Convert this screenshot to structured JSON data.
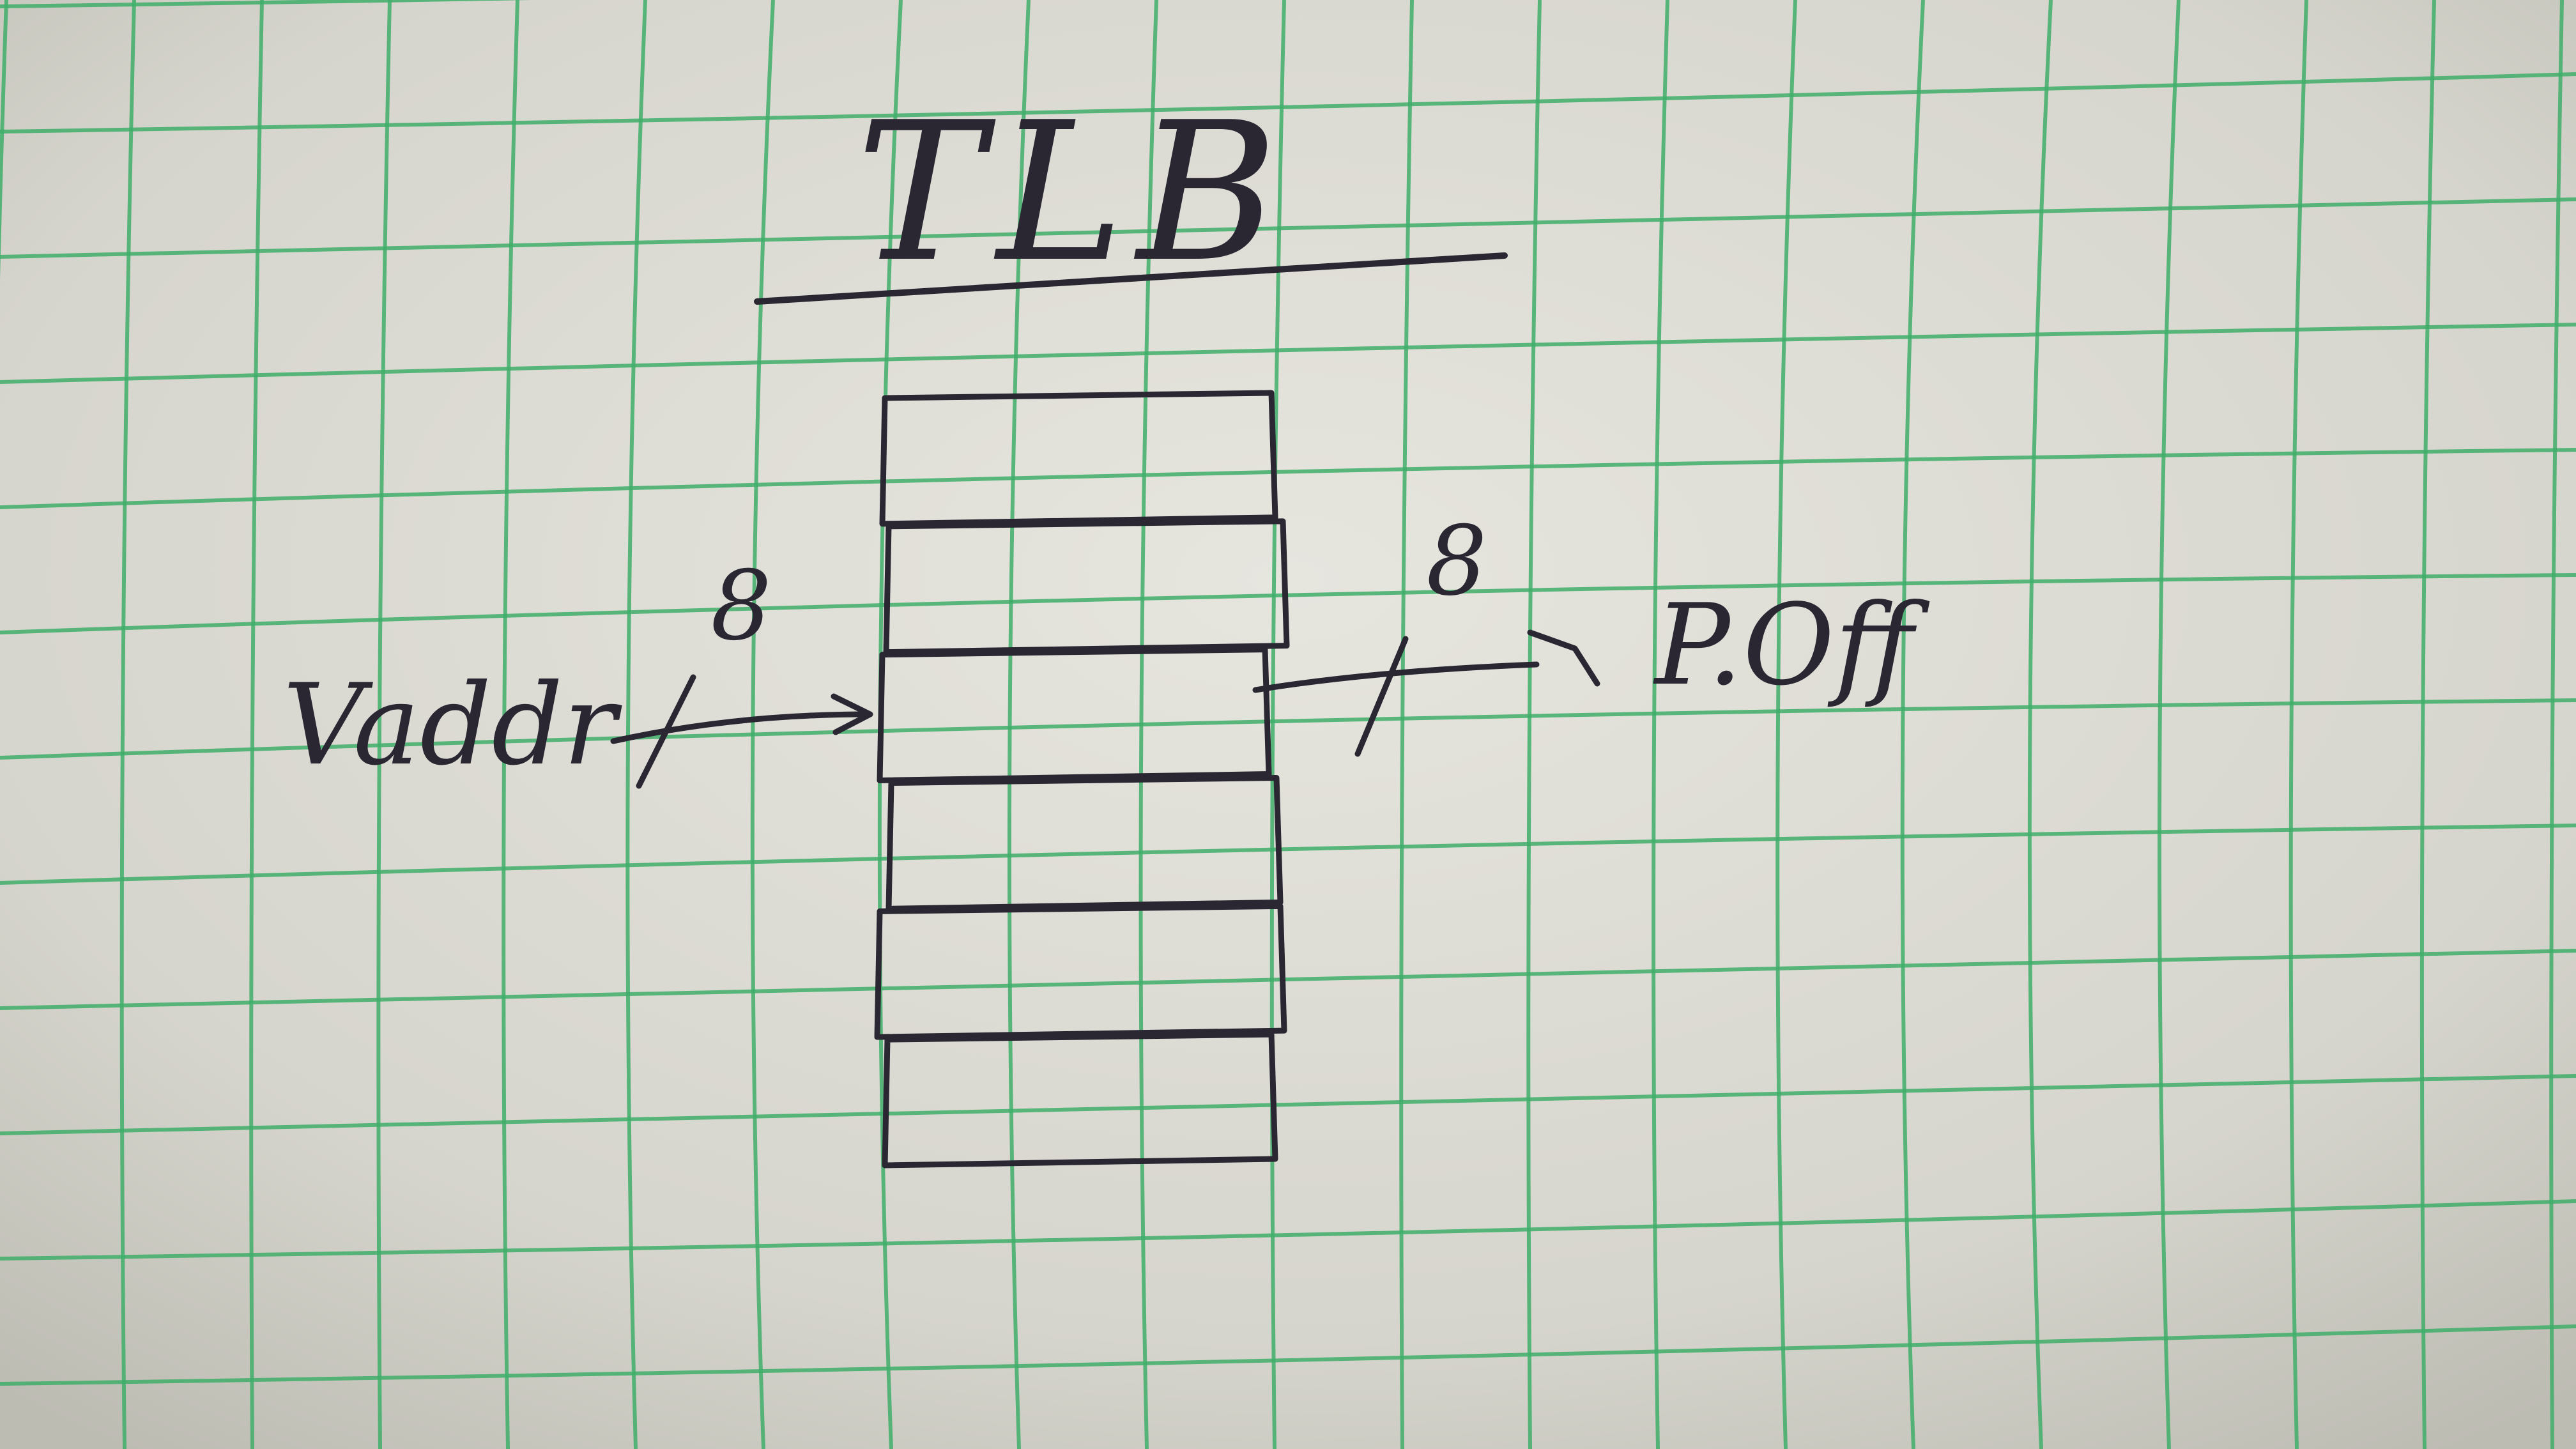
{
  "diagram": {
    "title": "TLB",
    "entry_count": 6,
    "input": {
      "label": "Vaddr",
      "bit_width": "8"
    },
    "output": {
      "label": "P.Off",
      "bit_width": "8"
    }
  },
  "colors": {
    "paper": "#d9d8d1",
    "grid": "#3fae6a",
    "ink": "#2a2733"
  }
}
